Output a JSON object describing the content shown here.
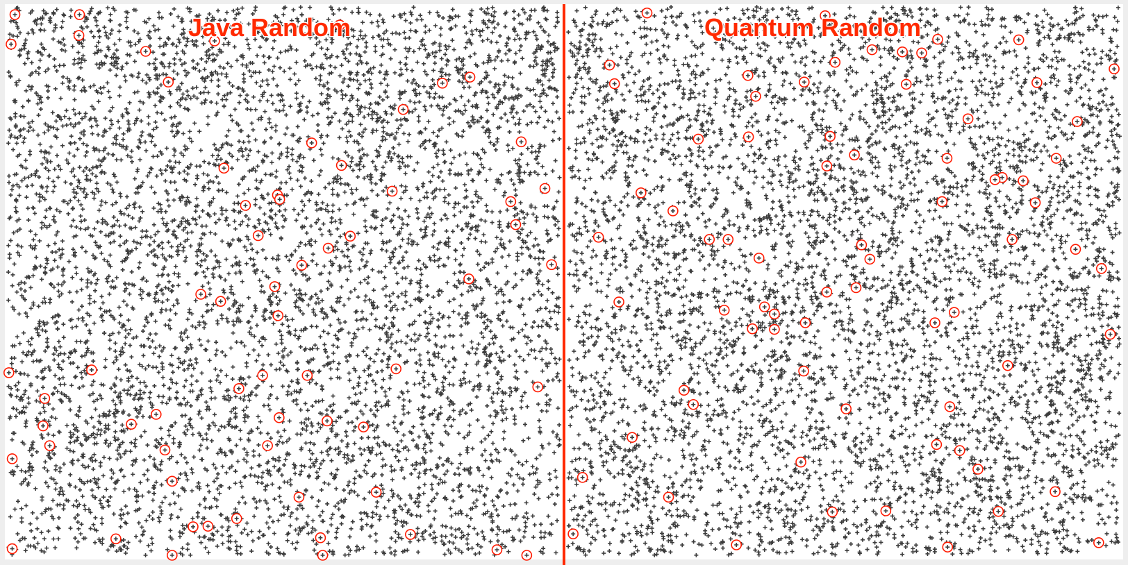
{
  "chart_data": [
    {
      "type": "scatter",
      "title": "Java Random",
      "point_count": 6000,
      "seed": 1337,
      "xlim": [
        0,
        1
      ],
      "ylim": [
        0,
        1
      ],
      "highlighted_points": [
        [
          0.012,
          0.014
        ],
        [
          0.129,
          0.014
        ],
        [
          0.601,
          0.033
        ],
        [
          0.005,
          0.068
        ],
        [
          0.128,
          0.052
        ],
        [
          0.249,
          0.081
        ],
        [
          0.374,
          0.062
        ],
        [
          0.29,
          0.137
        ],
        [
          0.787,
          0.139
        ],
        [
          0.837,
          0.128
        ],
        [
          0.716,
          0.187
        ],
        [
          0.55,
          0.248
        ],
        [
          0.93,
          0.246
        ],
        [
          0.391,
          0.294
        ],
        [
          0.604,
          0.289
        ],
        [
          0.973,
          0.331
        ],
        [
          0.696,
          0.336
        ],
        [
          0.488,
          0.343
        ],
        [
          0.911,
          0.355
        ],
        [
          0.43,
          0.362
        ],
        [
          0.492,
          0.351
        ],
        [
          0.92,
          0.397
        ],
        [
          0.453,
          0.417
        ],
        [
          0.62,
          0.418
        ],
        [
          0.58,
          0.44
        ],
        [
          0.532,
          0.471
        ],
        [
          0.985,
          0.47
        ],
        [
          0.835,
          0.496
        ],
        [
          0.483,
          0.51
        ],
        [
          0.349,
          0.524
        ],
        [
          0.385,
          0.537
        ],
        [
          0.489,
          0.563
        ],
        [
          0.001,
          0.667
        ],
        [
          0.151,
          0.662
        ],
        [
          0.542,
          0.672
        ],
        [
          0.703,
          0.66
        ],
        [
          0.461,
          0.672
        ],
        [
          0.96,
          0.693
        ],
        [
          0.066,
          0.714
        ],
        [
          0.418,
          0.696
        ],
        [
          0.268,
          0.743
        ],
        [
          0.491,
          0.749
        ],
        [
          0.063,
          0.764
        ],
        [
          0.223,
          0.761
        ],
        [
          0.578,
          0.755
        ],
        [
          0.644,
          0.766
        ],
        [
          0.075,
          0.8
        ],
        [
          0.47,
          0.8
        ],
        [
          0.284,
          0.808
        ],
        [
          0.007,
          0.824
        ],
        [
          0.297,
          0.865
        ],
        [
          0.667,
          0.885
        ],
        [
          0.527,
          0.894
        ],
        [
          0.414,
          0.933
        ],
        [
          0.335,
          0.948
        ],
        [
          0.362,
          0.947
        ],
        [
          0.195,
          0.97
        ],
        [
          0.729,
          0.962
        ],
        [
          0.566,
          0.968
        ],
        [
          0.886,
          0.99
        ],
        [
          0.94,
          1.0
        ],
        [
          0.57,
          1.0
        ],
        [
          0.297,
          1.0
        ],
        [
          0.007,
          0.988
        ]
      ]
    },
    {
      "type": "scatter",
      "title": "Quantum Random",
      "point_count": 6000,
      "seed": 90210,
      "xlim": [
        0,
        1
      ],
      "ylim": [
        0,
        1
      ],
      "highlighted_points": [
        [
          0.143,
          0.011
        ],
        [
          0.466,
          0.016
        ],
        [
          0.817,
          0.06
        ],
        [
          0.67,
          0.059
        ],
        [
          0.551,
          0.078
        ],
        [
          0.606,
          0.082
        ],
        [
          0.641,
          0.084
        ],
        [
          0.075,
          0.106
        ],
        [
          0.99,
          0.113
        ],
        [
          0.484,
          0.101
        ],
        [
          0.326,
          0.125
        ],
        [
          0.613,
          0.141
        ],
        [
          0.428,
          0.137
        ],
        [
          0.85,
          0.138
        ],
        [
          0.084,
          0.14
        ],
        [
          0.34,
          0.163
        ],
        [
          0.725,
          0.204
        ],
        [
          0.475,
          0.236
        ],
        [
          0.327,
          0.237
        ],
        [
          0.236,
          0.241
        ],
        [
          0.923,
          0.209
        ],
        [
          0.687,
          0.276
        ],
        [
          0.519,
          0.27
        ],
        [
          0.885,
          0.276
        ],
        [
          0.469,
          0.29
        ],
        [
          0.787,
          0.311
        ],
        [
          0.132,
          0.339
        ],
        [
          0.774,
          0.315
        ],
        [
          0.825,
          0.317
        ],
        [
          0.847,
          0.357
        ],
        [
          0.678,
          0.355
        ],
        [
          0.19,
          0.372
        ],
        [
          0.055,
          0.42
        ],
        [
          0.29,
          0.424
        ],
        [
          0.256,
          0.424
        ],
        [
          0.805,
          0.424
        ],
        [
          0.92,
          0.442
        ],
        [
          0.532,
          0.434
        ],
        [
          0.547,
          0.46
        ],
        [
          0.346,
          0.458
        ],
        [
          0.967,
          0.477
        ],
        [
          0.522,
          0.512
        ],
        [
          0.469,
          0.52
        ],
        [
          0.356,
          0.547
        ],
        [
          0.283,
          0.553
        ],
        [
          0.374,
          0.56
        ],
        [
          0.092,
          0.538
        ],
        [
          0.7,
          0.557
        ],
        [
          0.665,
          0.576
        ],
        [
          0.374,
          0.588
        ],
        [
          0.334,
          0.587
        ],
        [
          0.43,
          0.576
        ],
        [
          0.983,
          0.597
        ],
        [
          0.797,
          0.654
        ],
        [
          0.427,
          0.664
        ],
        [
          0.21,
          0.699
        ],
        [
          0.227,
          0.725
        ],
        [
          0.504,
          0.733
        ],
        [
          0.692,
          0.729
        ],
        [
          0.116,
          0.785
        ],
        [
          0.668,
          0.798
        ],
        [
          0.71,
          0.809
        ],
        [
          0.422,
          0.83
        ],
        [
          0.743,
          0.843
        ],
        [
          0.026,
          0.858
        ],
        [
          0.182,
          0.894
        ],
        [
          0.883,
          0.884
        ],
        [
          0.576,
          0.919
        ],
        [
          0.479,
          0.921
        ],
        [
          0.78,
          0.92
        ],
        [
          0.009,
          0.961
        ],
        [
          0.305,
          0.981
        ],
        [
          0.688,
          0.985
        ],
        [
          0.962,
          0.977
        ]
      ]
    }
  ]
}
